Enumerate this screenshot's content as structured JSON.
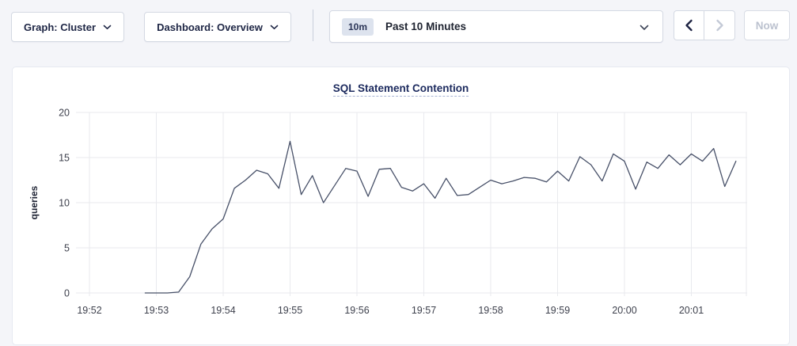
{
  "toolbar": {
    "graph_dropdown": {
      "label": "Graph: Cluster",
      "icon": "chevron-down"
    },
    "dashboard_dropdown": {
      "label": "Dashboard: Overview",
      "icon": "chevron-down"
    },
    "time_window": {
      "badge": "10m",
      "label": "Past 10 Minutes",
      "icon": "chevron-down"
    },
    "prev_button": {
      "icon": "chevron-left",
      "enabled": true
    },
    "next_button": {
      "icon": "chevron-right",
      "enabled": false
    },
    "now_button": {
      "label": "Now",
      "enabled": false
    }
  },
  "theme": {
    "accent_navy": "#1c2a5e",
    "page_background": "#f4f5f9",
    "disabled_gray": "#bcc2cf",
    "gridline": "#e9eaee"
  },
  "chart_data": {
    "type": "line",
    "title": "SQL Statement Contention",
    "ylabel": "queries",
    "ylim": [
      0,
      20
    ],
    "yticks": [
      0,
      5,
      10,
      15,
      20
    ],
    "x_tick_labels": [
      "19:52",
      "19:53",
      "19:54",
      "19:55",
      "19:56",
      "19:57",
      "19:58",
      "19:59",
      "20:00",
      "20:01"
    ],
    "grid": true,
    "legend": "none",
    "line_color": "#475068",
    "series": [
      {
        "name": "SQL Statement Contention",
        "start_time": "19:52:50",
        "interval_seconds": 10,
        "values": [
          0,
          0,
          0,
          0.1,
          1.8,
          5.4,
          7.1,
          8.2,
          11.6,
          12.5,
          13.6,
          13.2,
          11.6,
          16.8,
          10.9,
          13.0,
          10.0,
          11.9,
          13.8,
          13.5,
          10.7,
          13.7,
          13.8,
          11.7,
          11.3,
          12.1,
          10.5,
          12.7,
          10.8,
          10.9,
          11.7,
          12.5,
          12.1,
          12.4,
          12.8,
          12.7,
          12.3,
          13.5,
          12.4,
          15.1,
          14.2,
          12.4,
          15.4,
          14.6,
          11.5,
          14.5,
          13.8,
          15.3,
          14.2,
          15.4,
          14.6,
          16.0,
          11.8,
          14.6
        ]
      }
    ]
  }
}
